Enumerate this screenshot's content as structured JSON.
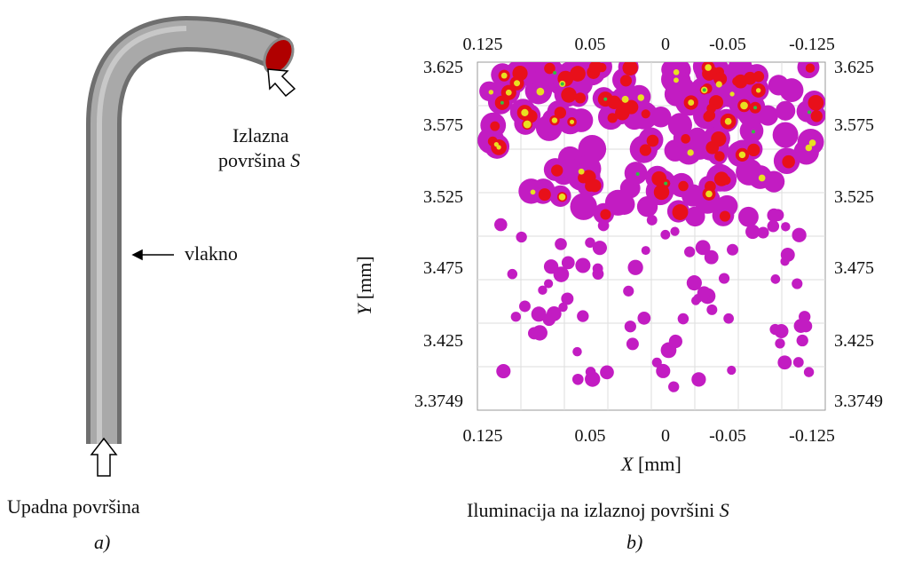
{
  "panel_a": {
    "exit_label_line1": "Izlazna",
    "exit_label_line2": "površina",
    "exit_label_symbol": "S",
    "fiber_label": "vlakno",
    "entry_label": "Upadna površina",
    "panel_label": "a)"
  },
  "panel_b": {
    "top_ticks": [
      "0.125",
      "0.05",
      "0",
      "-0.05",
      "-0.125"
    ],
    "bottom_ticks": [
      "0.125",
      "0.05",
      "0",
      "-0.05",
      "-0.125"
    ],
    "left_ticks": [
      "3.625",
      "3.575",
      "3.525",
      "3.475",
      "3.425",
      "3.3749"
    ],
    "right_ticks": [
      "3.625",
      "3.575",
      "3.525",
      "3.475",
      "3.425",
      "3.3749"
    ],
    "x_label_symbol": "X",
    "x_label_unit": "[mm]",
    "y_label_symbol": "Y",
    "y_label_unit": "[mm]",
    "caption": "Iluminacija na izlaznoj površini",
    "caption_symbol": "S",
    "panel_label": "b)"
  }
}
